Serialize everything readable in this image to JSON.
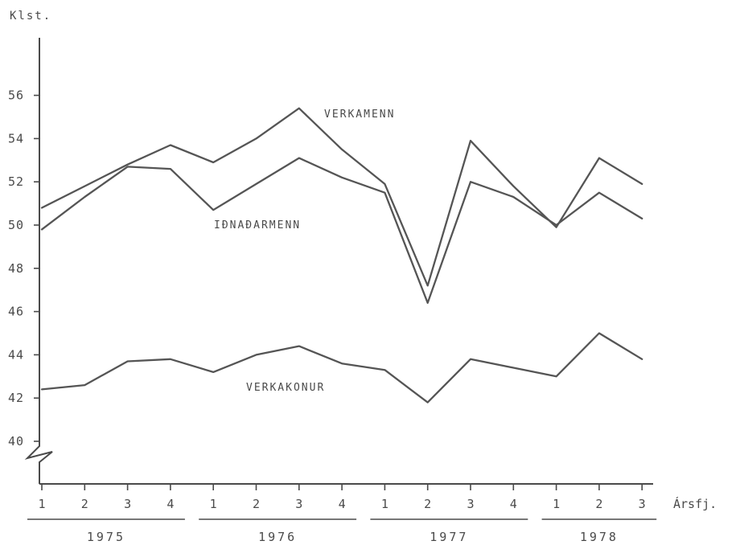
{
  "chart_data": {
    "type": "line",
    "ylabel": "Klst.",
    "xlabel": "Ársfj.",
    "ylim": [
      39,
      58
    ],
    "y_ticks": [
      40,
      42,
      44,
      46,
      48,
      50,
      52,
      54,
      56
    ],
    "quarters": [
      "1",
      "2",
      "3",
      "4",
      "1",
      "2",
      "3",
      "4",
      "1",
      "2",
      "3",
      "4",
      "1",
      "2",
      "3"
    ],
    "years": [
      {
        "label": "1975",
        "quarters": [
          1,
          2,
          3,
          4
        ]
      },
      {
        "label": "1976",
        "quarters": [
          1,
          2,
          3,
          4
        ]
      },
      {
        "label": "1977",
        "quarters": [
          1,
          2,
          3,
          4
        ]
      },
      {
        "label": "1978",
        "quarters": [
          1,
          2,
          3
        ]
      }
    ],
    "series": [
      {
        "name": "VERKAMENN",
        "values": [
          50.8,
          51.8,
          52.8,
          53.7,
          52.9,
          54.0,
          55.4,
          53.5,
          51.9,
          47.2,
          53.9,
          51.8,
          49.9,
          53.1,
          51.9
        ]
      },
      {
        "name": "IÐNAÐARMENN",
        "values": [
          49.8,
          51.3,
          52.7,
          52.6,
          50.7,
          51.9,
          53.1,
          52.2,
          51.5,
          46.4,
          52.0,
          51.3,
          50.0,
          51.5,
          50.3
        ]
      },
      {
        "name": "VERKAKONUR",
        "values": [
          42.4,
          42.6,
          43.7,
          43.8,
          43.2,
          44.0,
          44.4,
          43.6,
          43.3,
          41.8,
          43.8,
          43.4,
          43.0,
          45.0,
          43.8
        ]
      }
    ]
  }
}
